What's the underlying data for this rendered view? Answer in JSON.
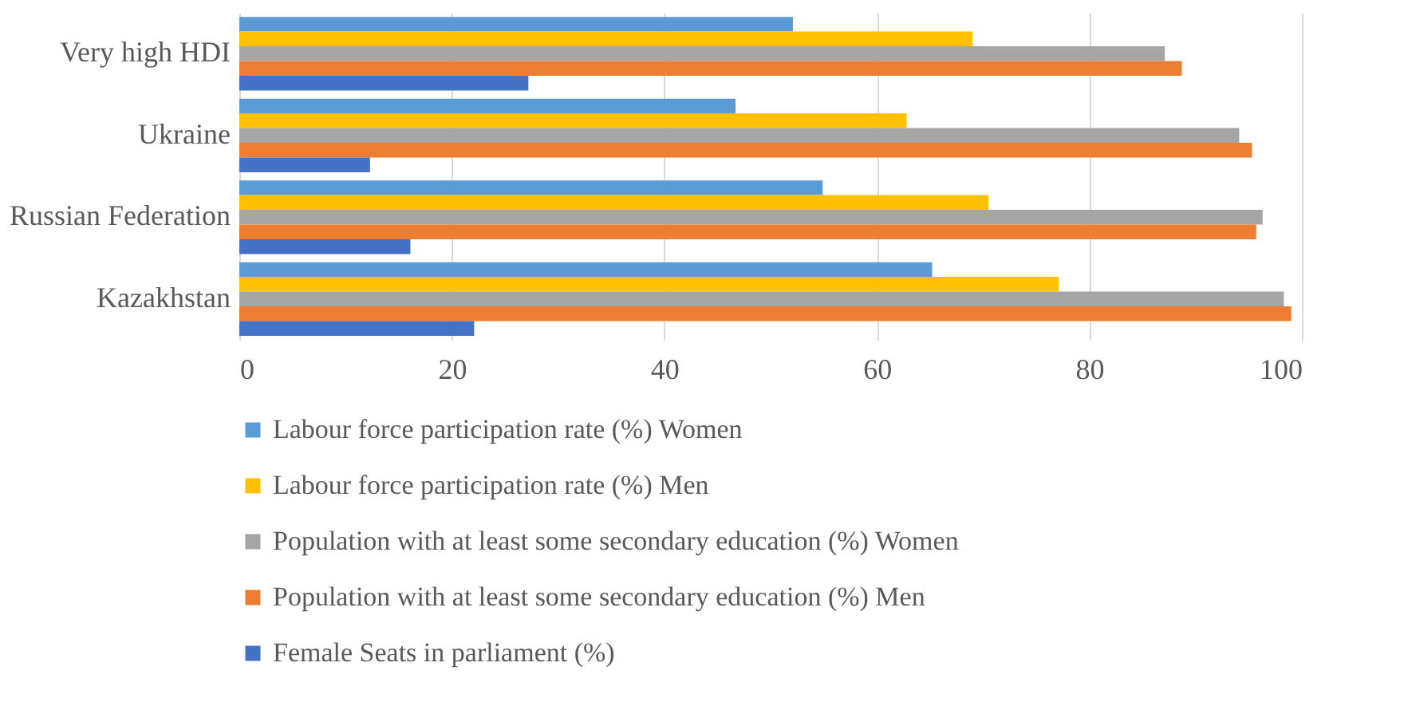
{
  "chart_data": {
    "type": "bar",
    "orientation": "horizontal",
    "categories": [
      "Very high HDI",
      "Ukraine",
      "Russian Federation",
      "Kazakhstan"
    ],
    "series": [
      {
        "name": "Labour force participation rate (%) Women",
        "color": "#5b9bd5",
        "values": [
          52.1,
          46.7,
          54.9,
          65.2
        ]
      },
      {
        "name": "Labour force participation rate (%) Men",
        "color": "#ffc000",
        "values": [
          69.0,
          62.8,
          70.5,
          77.1
        ]
      },
      {
        "name": "Population with at least some secondary education (%) Women",
        "color": "#a5a5a5",
        "values": [
          87.1,
          94.1,
          96.3,
          98.3
        ]
      },
      {
        "name": "Population with at least some secondary education (%) Men",
        "color": "#ed7d31",
        "values": [
          88.7,
          95.3,
          95.7,
          99.0
        ]
      },
      {
        "name": "Female Seats in parliament (%)",
        "color": "#4472c4",
        "values": [
          27.2,
          12.3,
          16.1,
          22.1
        ]
      }
    ],
    "xlim": [
      0,
      100
    ],
    "xticks": [
      0,
      20,
      40,
      60,
      80,
      100
    ],
    "grid": "x",
    "legend": "bottom"
  }
}
